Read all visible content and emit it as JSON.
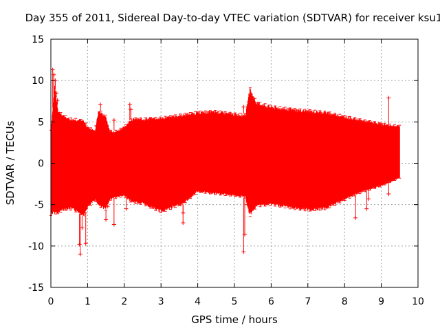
{
  "chart_data": {
    "type": "scatter",
    "title": "Day 355 of 2011, Sidereal Day-to-day VTEC variation (SDTVAR) for receiver ksu1",
    "xlabel": "GPS time / hours",
    "ylabel": "SDTVAR / TECUs",
    "xlim": [
      0,
      10
    ],
    "ylim": [
      -15,
      15
    ],
    "xticks": [
      "0",
      "1",
      "2",
      "3",
      "4",
      "5",
      "6",
      "7",
      "8",
      "9",
      "10"
    ],
    "yticks": [
      "15",
      "10",
      "5",
      "0",
      "-5",
      "-10",
      "-15"
    ],
    "grid": true,
    "series_color": "#ff0000",
    "series": [
      {
        "name": "SDTVAR",
        "envelope_x": [
          0.0,
          0.1,
          0.2,
          0.3,
          0.5,
          0.75,
          0.9,
          1.0,
          1.2,
          1.3,
          1.5,
          1.6,
          1.8,
          2.0,
          2.2,
          2.5,
          3.0,
          3.3,
          3.6,
          4.0,
          4.5,
          5.0,
          5.3,
          5.42,
          5.6,
          6.0,
          6.5,
          7.0,
          7.5,
          8.0,
          8.5,
          9.0,
          9.3,
          9.5
        ],
        "envelope_upper": [
          4.0,
          9.5,
          6.5,
          6.0,
          5.5,
          5.4,
          5.2,
          4.5,
          4.0,
          6.5,
          5.8,
          4.0,
          4.0,
          4.5,
          5.5,
          5.5,
          5.6,
          5.8,
          6.0,
          6.3,
          6.4,
          6.1,
          6.0,
          9.2,
          7.5,
          7.0,
          6.7,
          6.5,
          6.3,
          5.8,
          5.3,
          4.9,
          4.7,
          4.6
        ],
        "envelope_lower": [
          -6.3,
          -6.1,
          -6.2,
          -5.8,
          -5.6,
          -6.0,
          -6.5,
          -5.5,
          -4.5,
          -5.2,
          -5.7,
          -4.5,
          -4.2,
          -4.0,
          -4.8,
          -5.0,
          -6.0,
          -5.5,
          -5.0,
          -3.5,
          -3.8,
          -4.0,
          -4.2,
          -6.5,
          -5.3,
          -5.1,
          -5.5,
          -5.8,
          -5.6,
          -4.5,
          -3.5,
          -2.8,
          -2.2,
          -1.8
        ],
        "outliers": [
          [
            0.05,
            11.3
          ],
          [
            0.08,
            10.7
          ],
          [
            0.12,
            10.0
          ],
          [
            0.15,
            8.5
          ],
          [
            0.18,
            7.6
          ],
          [
            0.8,
            -11.0
          ],
          [
            0.78,
            -9.8
          ],
          [
            0.85,
            -7.8
          ],
          [
            0.95,
            -9.7
          ],
          [
            1.35,
            7.1
          ],
          [
            1.45,
            5.4
          ],
          [
            1.5,
            -6.8
          ],
          [
            1.55,
            -5.2
          ],
          [
            1.72,
            5.2
          ],
          [
            1.72,
            -7.4
          ],
          [
            2.15,
            7.1
          ],
          [
            2.18,
            6.5
          ],
          [
            2.05,
            -5.5
          ],
          [
            3.6,
            -7.2
          ],
          [
            3.6,
            -6.0
          ],
          [
            5.25,
            6.8
          ],
          [
            5.25,
            -10.7
          ],
          [
            5.28,
            -8.6
          ],
          [
            5.35,
            -5.0
          ],
          [
            8.3,
            -6.6
          ],
          [
            8.6,
            -5.5
          ],
          [
            8.65,
            -4.3
          ],
          [
            8.7,
            -3.0
          ],
          [
            9.2,
            7.9
          ],
          [
            9.2,
            -3.7
          ]
        ]
      }
    ]
  }
}
